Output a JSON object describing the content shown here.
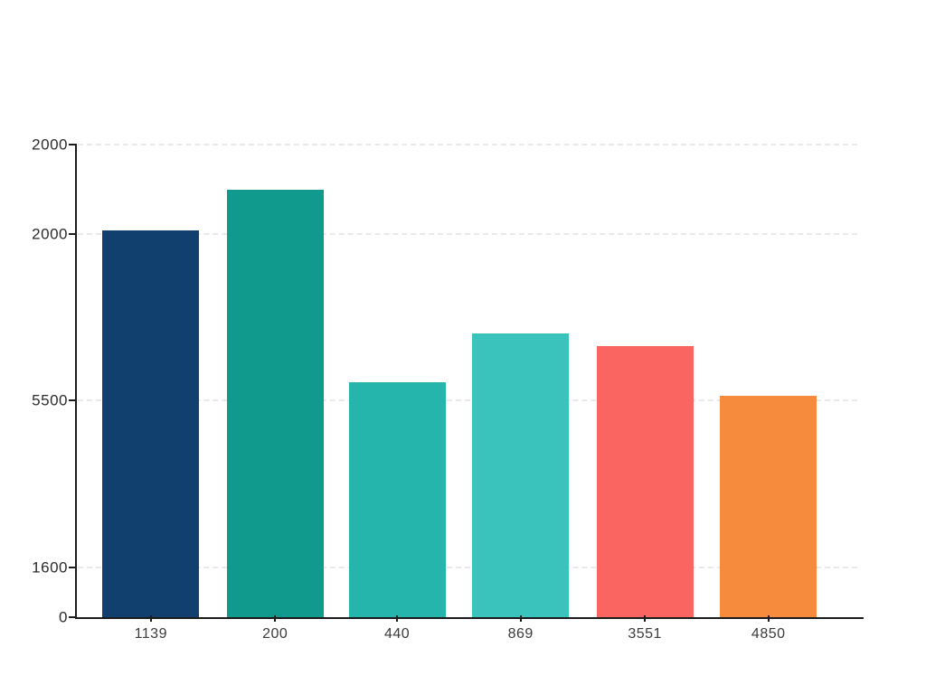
{
  "page": {
    "background_color": "#ffffff",
    "title": ""
  },
  "chart_data": {
    "type": "bar",
    "title": "",
    "xlabel": "",
    "ylabel": "",
    "legend": "none",
    "grid": "horizontal-dashed",
    "categories": [
      "1139",
      "200",
      "440",
      "869",
      "3551",
      "4850"
    ],
    "values_pct_of_axis": [
      81.8,
      90.4,
      49.7,
      60.0,
      57.4,
      46.8
    ],
    "bar_colors": [
      "#11406f",
      "#0f9a8d",
      "#25b5ac",
      "#3ac3bd",
      "#fa6561",
      "#f78b3d"
    ],
    "bar_centers_pct": [
      9.4,
      25.2,
      40.7,
      56.4,
      72.2,
      87.9
    ],
    "bar_width_pct": 12.3,
    "y_ticks": [
      {
        "label": "2000",
        "pct": 100
      },
      {
        "label": "2000",
        "pct": 81.1
      },
      {
        "label": "5500",
        "pct": 45.9
      },
      {
        "label": "1600",
        "pct": 10.5
      },
      {
        "label": "0",
        "pct": 0
      }
    ],
    "axis_color": "#1c1c1c",
    "gridline_color": "#e9e9e9",
    "tick_label_color": "#2b2b2b",
    "category_label_color": "#3a3a3a"
  }
}
